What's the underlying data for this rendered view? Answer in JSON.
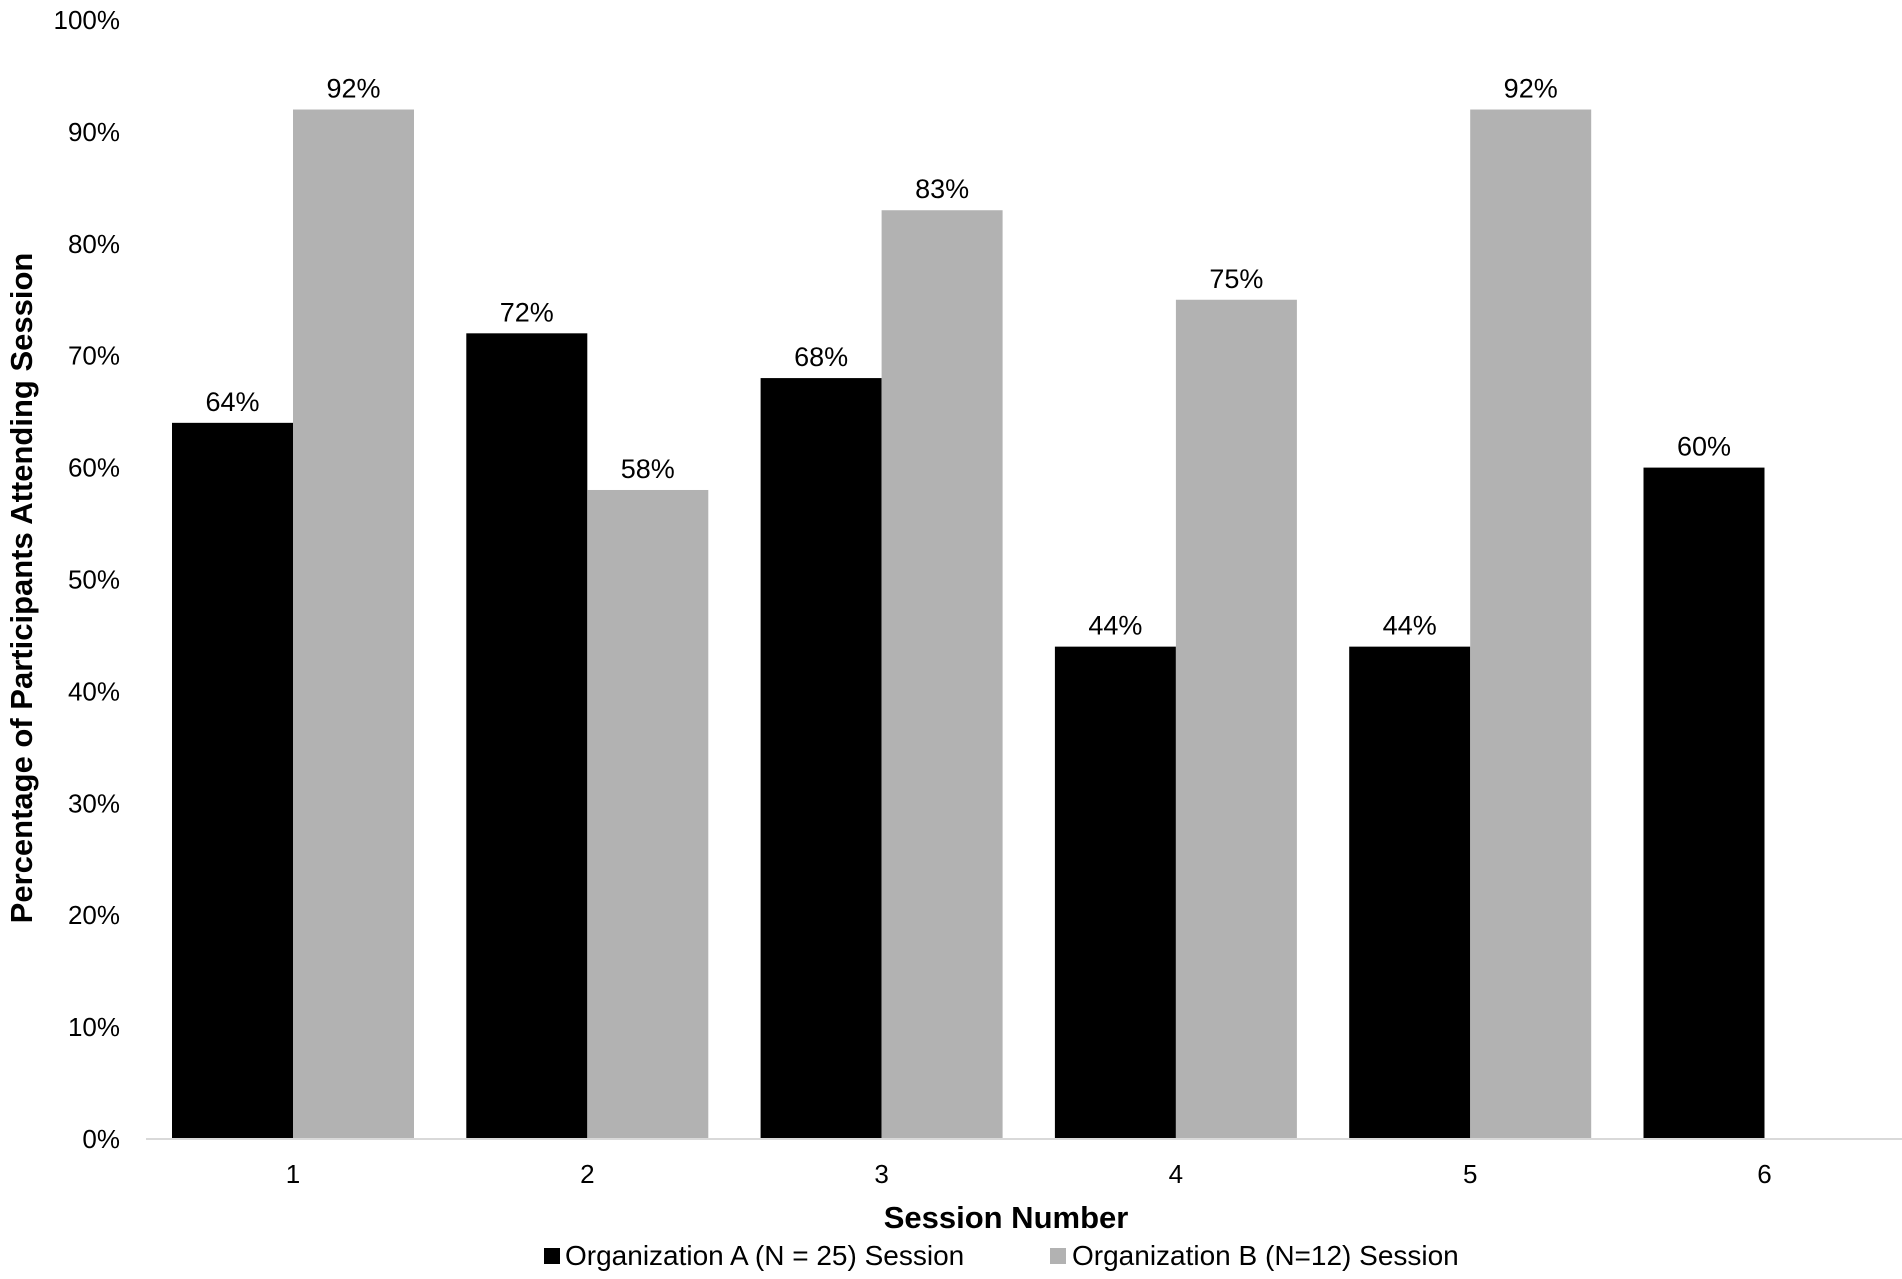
{
  "chart_data": {
    "type": "bar",
    "categories": [
      "1",
      "2",
      "3",
      "4",
      "5",
      "6"
    ],
    "series": [
      {
        "name": "Organization A (N = 25) Session",
        "color": "#000000",
        "values": [
          64,
          72,
          68,
          44,
          44,
          60
        ],
        "labels": [
          "64%",
          "72%",
          "68%",
          "44%",
          "44%",
          "60%"
        ]
      },
      {
        "name": "Organization B (N=12) Session",
        "color": "#b2b2b2",
        "values": [
          92,
          58,
          83,
          75,
          92,
          null
        ],
        "labels": [
          "92%",
          "58%",
          "83%",
          "75%",
          "92%",
          ""
        ]
      }
    ],
    "xlabel": "Session Number",
    "ylabel": "Percentage of Participants Attending Session",
    "ylim": [
      0,
      100
    ],
    "yticks": [
      0,
      10,
      20,
      30,
      40,
      50,
      60,
      70,
      80,
      90,
      100
    ],
    "ytick_labels": [
      "0%",
      "10%",
      "20%",
      "30%",
      "40%",
      "50%",
      "60%",
      "70%",
      "80%",
      "90%",
      "100%"
    ],
    "grid": false,
    "legend_position": "bottom"
  }
}
